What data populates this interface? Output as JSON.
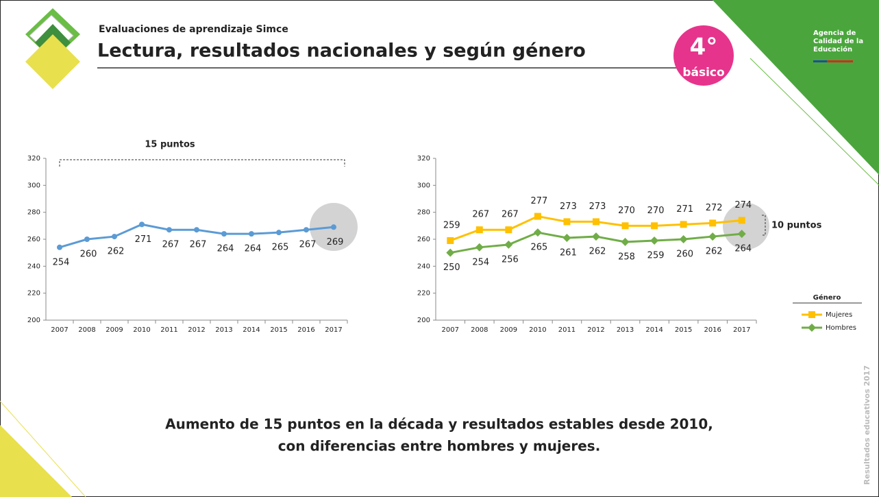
{
  "header": {
    "subtitle": "Evaluaciones de aprendizaje Simce",
    "title": "Lectura, resultados nacionales y según género",
    "badge_number": "4°",
    "badge_text": "básico",
    "agency": [
      "Agencia de",
      "Calidad de la",
      "Educación"
    ]
  },
  "chart_data": [
    {
      "type": "line",
      "categories": [
        "2007",
        "2008",
        "2009",
        "2010",
        "2011",
        "2012",
        "2013",
        "2014",
        "2015",
        "2016",
        "2017"
      ],
      "values": [
        254,
        260,
        262,
        271,
        267,
        267,
        264,
        264,
        265,
        267,
        269
      ],
      "color": "#5b9bd5",
      "ylim": [
        200,
        320
      ],
      "yticks": [
        200,
        220,
        240,
        260,
        280,
        300,
        320
      ],
      "annotation": "15 puntos"
    },
    {
      "type": "line",
      "categories": [
        "2007",
        "2008",
        "2009",
        "2010",
        "2011",
        "2012",
        "2013",
        "2014",
        "2015",
        "2016",
        "2017"
      ],
      "series": [
        {
          "name": "Mujeres",
          "color": "#ffc000",
          "values": [
            259,
            267,
            267,
            277,
            273,
            273,
            270,
            270,
            271,
            272,
            274
          ]
        },
        {
          "name": "Hombres",
          "color": "#70ad47",
          "values": [
            250,
            254,
            256,
            265,
            261,
            262,
            258,
            259,
            260,
            262,
            264
          ]
        }
      ],
      "ylim": [
        200,
        320
      ],
      "yticks": [
        200,
        220,
        240,
        260,
        280,
        300,
        320
      ],
      "legend_title": "Género",
      "annotation": "10  puntos"
    }
  ],
  "conclusion": [
    "Aumento de 15 puntos en la década y resultados estables desde 2010,",
    "con diferencias entre hombres y mujeres."
  ],
  "side_text": "Resultados educativos 2017"
}
